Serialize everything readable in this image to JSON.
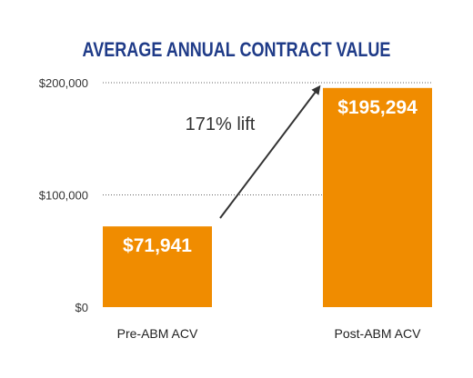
{
  "chart_data": {
    "type": "bar",
    "title": "AVERAGE ANNUAL CONTRACT VALUE",
    "categories": [
      "Pre-ABM ACV",
      "Post-ABM ACV"
    ],
    "values": [
      71941,
      195294
    ],
    "data_labels": [
      "$71,941",
      "$195,294"
    ],
    "y_ticks": [
      {
        "value": 0,
        "label": "$0"
      },
      {
        "value": 100000,
        "label": "$100,000"
      },
      {
        "value": 200000,
        "label": "$200,000"
      }
    ],
    "ylim": [
      0,
      200000
    ],
    "grid": "dotted horizontal",
    "annotation": "171% lift",
    "bar_color": "#f08c00",
    "title_color": "#1f3b88"
  }
}
